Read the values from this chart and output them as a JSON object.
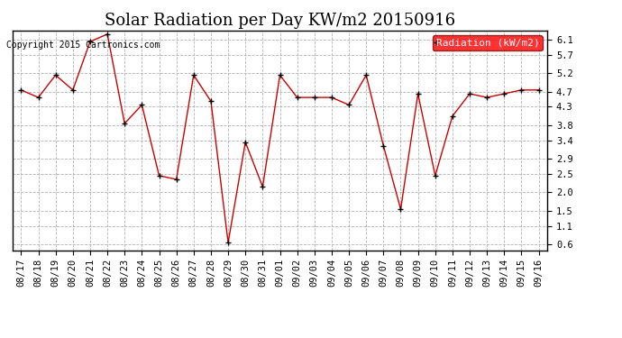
{
  "title": "Solar Radiation per Day KW/m2 20150916",
  "copyright_text": "Copyright 2015 Cartronics.com",
  "legend_label": "Radiation (kW/m2)",
  "x_labels": [
    "08/17",
    "08/18",
    "08/19",
    "08/20",
    "08/21",
    "08/22",
    "08/23",
    "08/24",
    "08/25",
    "08/26",
    "08/27",
    "08/28",
    "08/29",
    "08/30",
    "08/31",
    "09/01",
    "09/02",
    "09/03",
    "09/04",
    "09/05",
    "09/06",
    "09/07",
    "09/08",
    "09/09",
    "09/10",
    "09/11",
    "09/12",
    "09/13",
    "09/14",
    "09/15",
    "09/16"
  ],
  "y_values": [
    4.75,
    4.55,
    5.15,
    4.75,
    6.05,
    6.25,
    3.85,
    4.35,
    2.45,
    2.35,
    5.15,
    4.45,
    0.65,
    3.35,
    2.15,
    5.15,
    4.55,
    4.55,
    4.55,
    4.35,
    5.15,
    3.25,
    1.55,
    4.65,
    2.45,
    4.05,
    4.65,
    4.55,
    4.65,
    4.75,
    4.75
  ],
  "line_color": "#cc0000",
  "marker_color": "black",
  "bg_color": "white",
  "grid_color": "#aaaaaa",
  "yticks": [
    0.6,
    1.1,
    1.5,
    2.0,
    2.5,
    2.9,
    3.4,
    3.8,
    4.3,
    4.7,
    5.2,
    5.7,
    6.1
  ],
  "ylim": [
    0.45,
    6.35
  ],
  "title_fontsize": 13,
  "tick_fontsize": 7.5,
  "copyright_fontsize": 7,
  "legend_fontsize": 8
}
